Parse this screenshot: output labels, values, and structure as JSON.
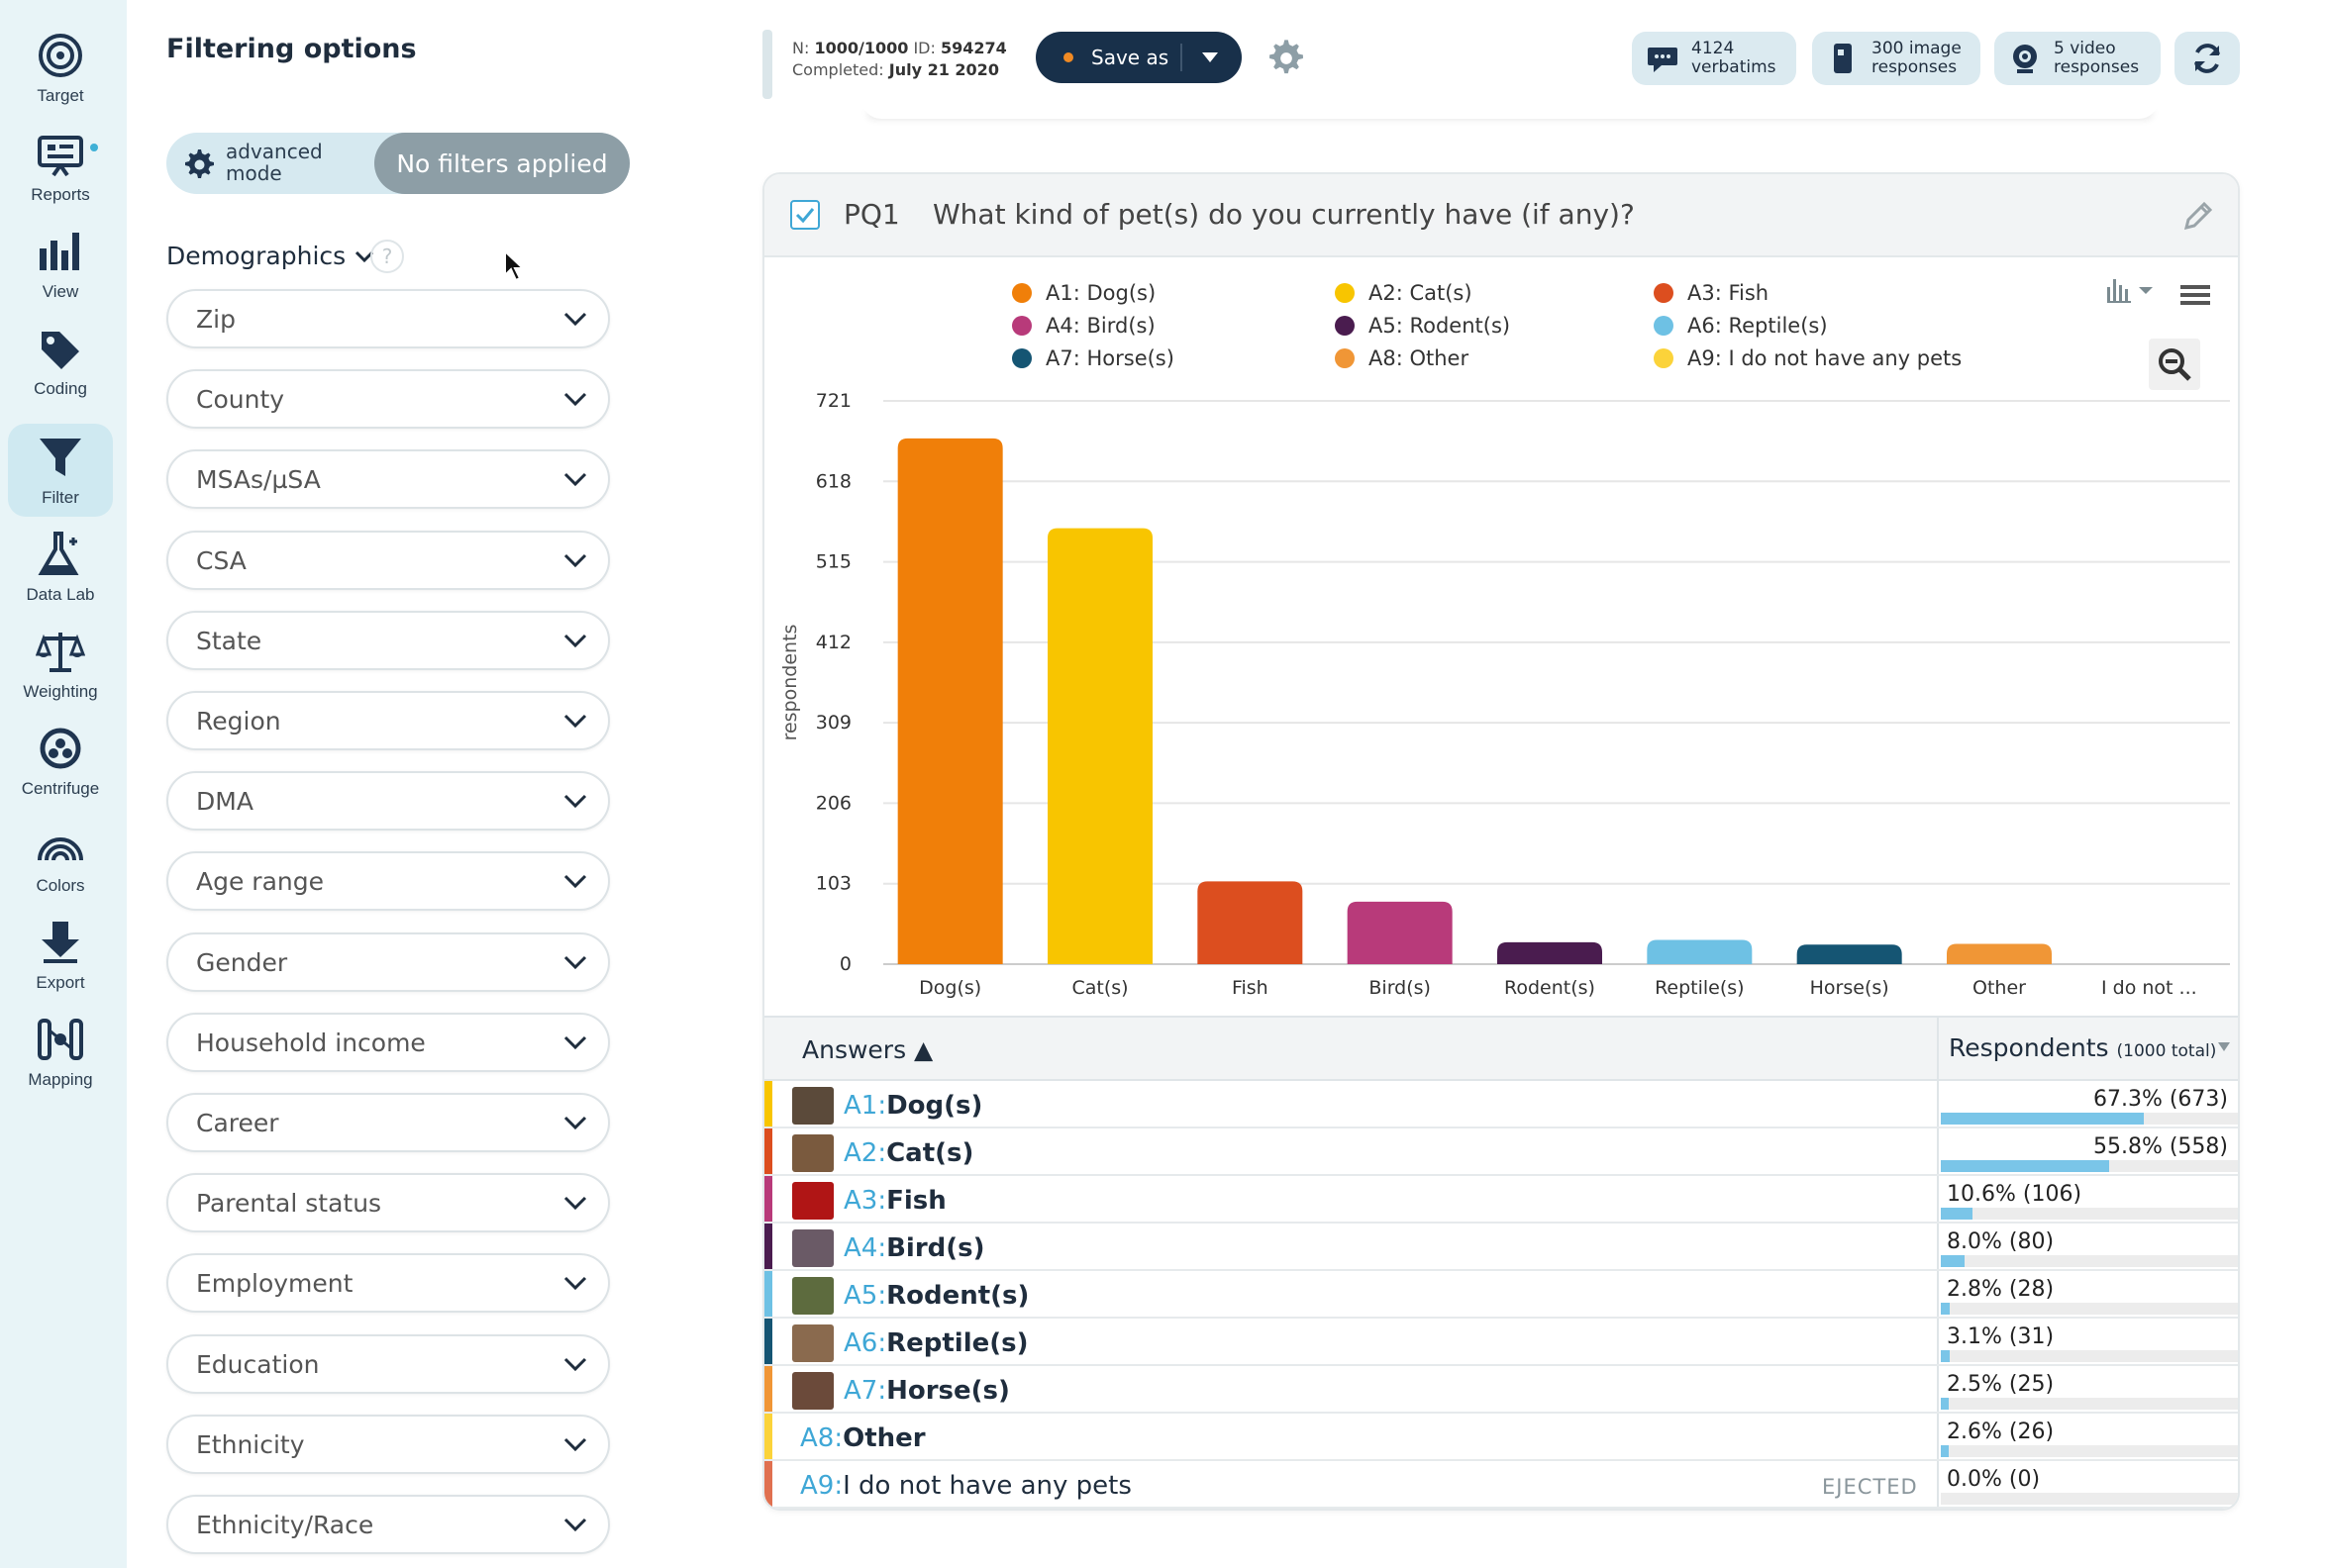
{
  "nav": [
    {
      "label": "Target",
      "icon": "target-icon"
    },
    {
      "label": "Reports",
      "icon": "reports-icon"
    },
    {
      "label": "View",
      "icon": "bar-chart-icon"
    },
    {
      "label": "Coding",
      "icon": "tag-icon"
    },
    {
      "label": "Filter",
      "icon": "funnel-icon"
    },
    {
      "label": "Data Lab",
      "icon": "flask-icon"
    },
    {
      "label": "Weighting",
      "icon": "scale-icon"
    },
    {
      "label": "Centrifuge",
      "icon": "centrifuge-icon"
    },
    {
      "label": "Colors",
      "icon": "rainbow-icon"
    },
    {
      "label": "Export",
      "icon": "download-icon"
    },
    {
      "label": "Mapping",
      "icon": "mapping-icon"
    }
  ],
  "filter_panel": {
    "title": "Filtering options",
    "mode_label_1": "advanced",
    "mode_label_2": "mode",
    "no_filters": "No filters applied",
    "section": "Demographics",
    "help": "?",
    "dropdowns": [
      "Zip",
      "County",
      "MSAs/µSA",
      "CSA",
      "State",
      "Region",
      "DMA",
      "Age range",
      "Gender",
      "Household income",
      "Career",
      "Parental status",
      "Employment",
      "Education",
      "Ethnicity",
      "Ethnicity/Race"
    ]
  },
  "topbar": {
    "n_label": "N:",
    "n_value": "1000/1000",
    "id_label": "ID:",
    "id_value": "594274",
    "completed_label": "Completed:",
    "completed_value": "July 21 2020",
    "save_as": "Save as",
    "verbatims_count": "4124",
    "verbatims_label": "verbatims",
    "image_count": "300 image",
    "image_label": "responses",
    "video_count": "5 video",
    "video_label": "responses"
  },
  "question": {
    "id": "PQ1",
    "text": "What kind of pet(s) do you currently have (if any)?"
  },
  "legend": [
    {
      "label": "A1: Dog(s)",
      "color": "#f07f09"
    },
    {
      "label": "A2: Cat(s)",
      "color": "#f8c500"
    },
    {
      "label": "A3: Fish",
      "color": "#dc4e1f"
    },
    {
      "label": "A4: Bird(s)",
      "color": "#b83a7a"
    },
    {
      "label": "A5: Rodent(s)",
      "color": "#4a1c4f"
    },
    {
      "label": "A6: Reptile(s)",
      "color": "#6ec1e4"
    },
    {
      "label": "A7: Horse(s)",
      "color": "#155573"
    },
    {
      "label": "A8: Other",
      "color": "#f09636"
    },
    {
      "label": "A9: I do not have any pets",
      "color": "#fbd33a"
    }
  ],
  "chart_data": {
    "type": "bar",
    "ylabel": "respondents",
    "ylim": [
      0,
      721
    ],
    "yticks": [
      "721",
      "618",
      "515",
      "412",
      "309",
      "206",
      "103",
      "0"
    ],
    "yticks_values": [
      721,
      618,
      515,
      412,
      309,
      206,
      103,
      0
    ],
    "categories": [
      "Dog(s)",
      "Cat(s)",
      "Fish",
      "Bird(s)",
      "Rodent(s)",
      "Reptile(s)",
      "Horse(s)",
      "Other",
      "I do not ..."
    ],
    "values": [
      673,
      558,
      106,
      80,
      28,
      31,
      25,
      26,
      0
    ],
    "colors": [
      "#f07f09",
      "#f8c500",
      "#dc4e1f",
      "#b83a7a",
      "#4a1c4f",
      "#6ec1e4",
      "#155573",
      "#f09636",
      "#fbd33a"
    ]
  },
  "table": {
    "col_answers": "Answers ▲",
    "col_respondents": "Respondents",
    "col_respondents_total": "(1000 total)",
    "rows": [
      {
        "code": "A1:",
        "label": "Dog(s)",
        "pct": "67.3% (673)",
        "frac": 0.673,
        "color": "#f8c500",
        "thumb": "#5b4a3a",
        "bold": true
      },
      {
        "code": "A2:",
        "label": "Cat(s)",
        "pct": "55.8% (558)",
        "frac": 0.558,
        "color": "#dc4e1f",
        "thumb": "#7a5a3e",
        "bold": true
      },
      {
        "code": "A3:",
        "label": "Fish",
        "pct": "10.6% (106)",
        "frac": 0.106,
        "color": "#b83a7a",
        "thumb": "#b01515",
        "bold": true
      },
      {
        "code": "A4:",
        "label": "Bird(s)",
        "pct": "8.0% (80)",
        "frac": 0.08,
        "color": "#4a1c4f",
        "thumb": "#6a5a66",
        "bold": true
      },
      {
        "code": "A5:",
        "label": "Rodent(s)",
        "pct": "2.8% (28)",
        "frac": 0.028,
        "color": "#6ec1e4",
        "thumb": "#5d6b3e",
        "bold": true
      },
      {
        "code": "A6:",
        "label": "Reptile(s)",
        "pct": "3.1% (31)",
        "frac": 0.031,
        "color": "#155573",
        "thumb": "#8a6a4e",
        "bold": true
      },
      {
        "code": "A7:",
        "label": "Horse(s)",
        "pct": "2.5% (25)",
        "frac": 0.025,
        "color": "#f09636",
        "thumb": "#6b4a3a",
        "bold": true
      },
      {
        "code": "A8:",
        "label": "Other",
        "pct": "2.6% (26)",
        "frac": 0.026,
        "color": "#fbd33a",
        "thumb": "",
        "bold": true
      },
      {
        "code": "A9:",
        "label": "I do not have any pets",
        "pct": "0.0% (0)",
        "frac": 0,
        "color": "#e07050",
        "thumb": "",
        "bold": false,
        "ejected": "EJECTED"
      }
    ]
  }
}
